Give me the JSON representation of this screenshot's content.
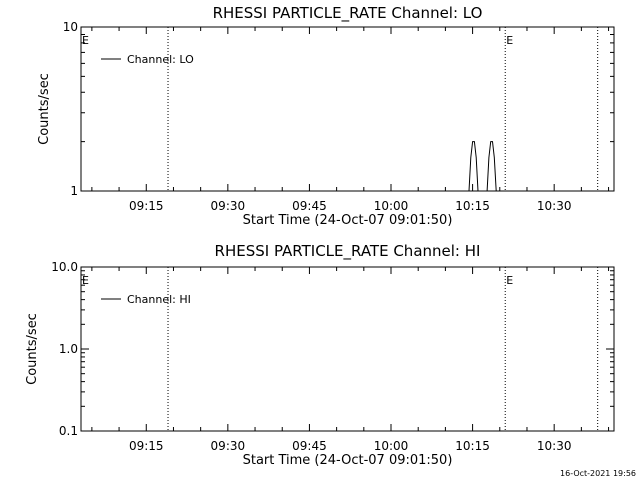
{
  "chart_data": [
    {
      "type": "line",
      "title": "RHESSI PARTICLE_RATE Channel: LO",
      "xlabel": "Start Time (24-Oct-07 09:01:50)",
      "ylabel": "Counts/sec",
      "yscale": "log",
      "ylim": [
        1,
        10
      ],
      "y_tick_labels": [
        "1",
        "10"
      ],
      "xlim": [
        "09:03",
        "10:41"
      ],
      "x_tick_labels": [
        "09:15",
        "09:30",
        "09:45",
        "10:00",
        "10:15",
        "10:30"
      ],
      "legend": {
        "placement": "top-left",
        "label": "Channel: LO"
      },
      "event_lines": [
        "09:19",
        "10:21",
        "10:38"
      ],
      "event_marks": [
        {
          "time": "09:03",
          "label": "E"
        },
        {
          "time": "10:21",
          "label": "E"
        }
      ],
      "series": [
        {
          "name": "Channel: LO",
          "x": [
            "10:14:20",
            "10:14:40",
            "10:15:00",
            "10:15:20",
            "10:15:40",
            "10:16:00",
            "10:17:40",
            "10:18:00",
            "10:18:20",
            "10:18:40",
            "10:19:00",
            "10:19:20"
          ],
          "y": [
            1,
            1.6,
            2,
            2,
            1.6,
            1,
            1,
            1.6,
            2,
            2,
            1.6,
            1
          ]
        }
      ]
    },
    {
      "type": "line",
      "title": "RHESSI PARTICLE_RATE Channel: HI",
      "xlabel": "Start Time (24-Oct-07 09:01:50)",
      "ylabel": "Counts/sec",
      "yscale": "log",
      "ylim": [
        0.1,
        10
      ],
      "y_tick_labels": [
        "0.1",
        "1.0",
        "10.0"
      ],
      "xlim": [
        "09:03",
        "10:41"
      ],
      "x_tick_labels": [
        "09:15",
        "09:30",
        "09:45",
        "10:00",
        "10:15",
        "10:30"
      ],
      "legend": {
        "placement": "top-left",
        "label": "Channel: HI"
      },
      "event_lines": [
        "09:19",
        "10:21",
        "10:38"
      ],
      "event_marks": [
        {
          "time": "09:03",
          "label": "E"
        },
        {
          "time": "10:21",
          "label": "E"
        }
      ],
      "series": [
        {
          "name": "Channel: HI",
          "x": [],
          "y": []
        }
      ]
    }
  ],
  "footer": {
    "timestamp": "16-Oct-2021 19:56"
  }
}
